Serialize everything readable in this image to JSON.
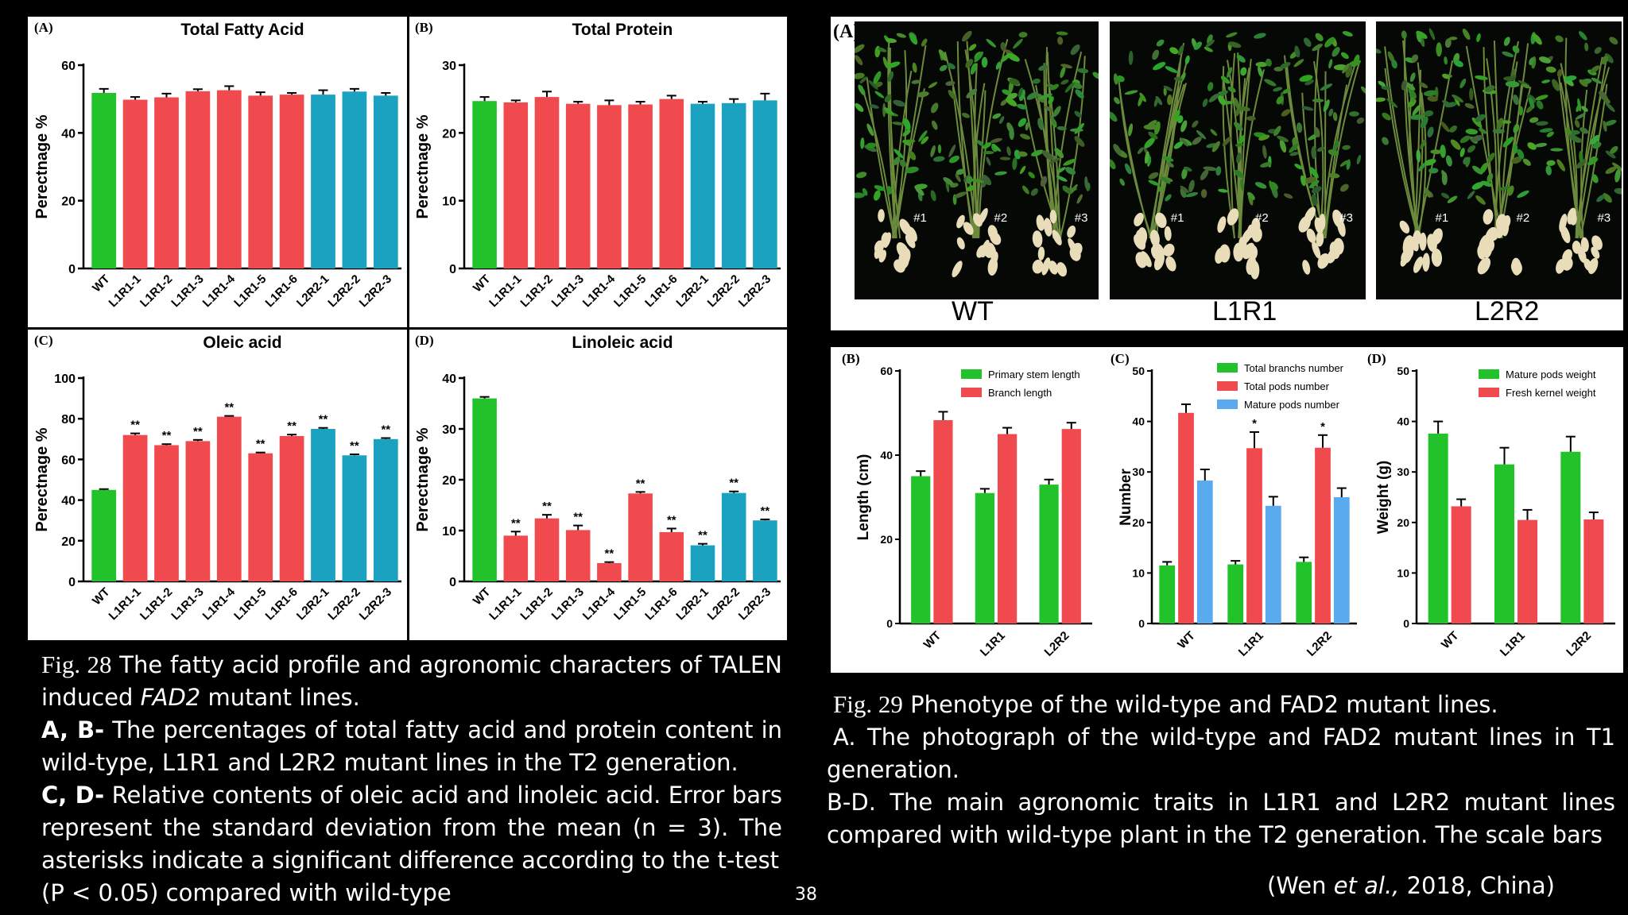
{
  "charts": [
    {
      "id": "A",
      "panel_label": "(A)",
      "title": "Total Fatty Acid",
      "ylabel": "Perectnage %",
      "ylim": [
        0,
        60
      ],
      "yticks": [
        0,
        20,
        40,
        60
      ],
      "categories": [
        "WT",
        "L1R1-1",
        "L1R1-2",
        "L1R1-3",
        "L1R1-4",
        "L1R1-5",
        "L1R1-6",
        "L2R2-1",
        "L2R2-2",
        "L2R2-3"
      ],
      "values": [
        51.8,
        49.8,
        50.5,
        52.3,
        52.6,
        51.0,
        51.3,
        51.3,
        52.2,
        51.0
      ],
      "errors": [
        1.2,
        0.8,
        1.1,
        0.6,
        1.2,
        1.0,
        0.5,
        1.3,
        0.8,
        0.8
      ],
      "stars": [
        "",
        "",
        "",
        "",
        "",
        "",
        "",
        "",
        "",
        ""
      ]
    },
    {
      "id": "B",
      "panel_label": "(B)",
      "title": "Total Protein",
      "ylabel": "Perectnage %",
      "ylim": [
        0,
        30
      ],
      "yticks": [
        0,
        10,
        20,
        30
      ],
      "categories": [
        "WT",
        "L1R1-1",
        "L1R1-2",
        "L1R1-3",
        "L1R1-4",
        "L1R1-5",
        "L1R1-6",
        "L2R2-1",
        "L2R2-2",
        "L2R2-3"
      ],
      "values": [
        24.7,
        24.5,
        25.3,
        24.3,
        24.1,
        24.2,
        25.0,
        24.3,
        24.4,
        24.8
      ],
      "errors": [
        0.6,
        0.3,
        0.8,
        0.3,
        0.7,
        0.4,
        0.5,
        0.3,
        0.6,
        1.0
      ],
      "stars": [
        "",
        "",
        "",
        "",
        "",
        "",
        "",
        "",
        "",
        ""
      ]
    },
    {
      "id": "C",
      "panel_label": "(C)",
      "title": "Oleic acid",
      "ylabel": "Perectnage %",
      "ylim": [
        0,
        100
      ],
      "yticks": [
        0,
        20,
        40,
        60,
        80,
        100
      ],
      "categories": [
        "WT",
        "L1R1-1",
        "L1R1-2",
        "L1R1-3",
        "L1R1-4",
        "L1R1-5",
        "L1R1-6",
        "L2R2-1",
        "L2R2-2",
        "L2R2-3"
      ],
      "values": [
        45,
        72,
        67,
        69,
        81,
        63,
        71.5,
        75,
        62,
        70
      ],
      "errors": [
        0.4,
        0.8,
        0.5,
        0.6,
        0.4,
        0.4,
        0.7,
        0.5,
        0.5,
        0.5
      ],
      "stars": [
        "",
        "**",
        "**",
        "**",
        "**",
        "**",
        "**",
        "**",
        "**",
        "**"
      ]
    },
    {
      "id": "D",
      "panel_label": "(D)",
      "title": "Linoleic acid",
      "ylabel": "Perectnage %",
      "ylim": [
        0,
        40
      ],
      "yticks": [
        0,
        10,
        20,
        30,
        40
      ],
      "categories": [
        "WT",
        "L1R1-1",
        "L1R1-2",
        "L1R1-3",
        "L1R1-4",
        "L1R1-5",
        "L1R1-6",
        "L2R2-1",
        "L2R2-2",
        "L2R2-3"
      ],
      "values": [
        36,
        9,
        12.4,
        10.1,
        3.6,
        17.3,
        9.7,
        7.1,
        17.4,
        12
      ],
      "errors": [
        0.3,
        0.8,
        0.7,
        0.9,
        0.2,
        0.3,
        0.7,
        0.3,
        0.3,
        0.2
      ],
      "stars": [
        "",
        "**",
        "**",
        "**",
        "**",
        "**",
        "**",
        "**",
        "**",
        "**"
      ]
    },
    {
      "id": "B2",
      "panel_label": "(B)",
      "title": "",
      "ylabel": "Length (cm)",
      "ylim": [
        0,
        60
      ],
      "yticks": [
        0,
        20,
        40,
        60
      ],
      "categories": [
        "WT",
        "L1R1",
        "L2R2"
      ],
      "series": [
        {
          "name": "Primary stem length",
          "color": "#22c32a",
          "values": [
            35,
            31,
            33
          ],
          "errors": [
            1.2,
            1.0,
            1.2
          ]
        },
        {
          "name": "Branch length",
          "color": "#f04a4e",
          "values": [
            48.3,
            45,
            46.2
          ],
          "errors": [
            2.0,
            1.5,
            1.5
          ]
        }
      ]
    },
    {
      "id": "C2",
      "panel_label": "(C)",
      "title": "",
      "ylabel": "Number",
      "ylim": [
        0,
        50
      ],
      "yticks": [
        0,
        10,
        20,
        30,
        40,
        50
      ],
      "categories": [
        "WT",
        "L1R1",
        "L2R2"
      ],
      "series": [
        {
          "name": "Total branchs number",
          "color": "#22c32a",
          "values": [
            11.5,
            11.7,
            12.2
          ],
          "errors": [
            0.7,
            0.7,
            0.9
          ]
        },
        {
          "name": "Total pods number",
          "color": "#f04a4e",
          "values": [
            41.7,
            34.7,
            34.8
          ],
          "errors": [
            1.7,
            3.2,
            2.5
          ]
        },
        {
          "name": "Mature pods number",
          "color": "#5aaaf0",
          "values": [
            28.3,
            23.3,
            25
          ],
          "errors": [
            2.2,
            1.8,
            1.8
          ]
        }
      ],
      "stars": [
        [
          "",
          "",
          ""
        ],
        [
          "",
          "*",
          ""
        ],
        [
          "",
          "*",
          ""
        ]
      ]
    },
    {
      "id": "D2",
      "panel_label": "(D)",
      "title": "",
      "ylabel": "Weight (g)",
      "ylim": [
        0,
        50
      ],
      "yticks": [
        0,
        10,
        20,
        30,
        40,
        50
      ],
      "categories": [
        "WT",
        "L1R1",
        "L2R2"
      ],
      "series": [
        {
          "name": "Mature pods weight",
          "color": "#22c32a",
          "values": [
            37.6,
            31.5,
            34
          ],
          "errors": [
            2.4,
            3.3,
            3.0
          ]
        },
        {
          "name": "Fresh kernel weight",
          "color": "#f04a4e",
          "values": [
            23.2,
            20.5,
            20.6
          ],
          "errors": [
            1.4,
            2.0,
            1.4
          ]
        }
      ]
    }
  ],
  "colors": {
    "wt": "#22c32a",
    "l1r1": "#f04a4e",
    "l2r2": "#1aa2c0"
  },
  "photo": {
    "panel_label": "(A)",
    "groups": [
      {
        "label": "WT"
      },
      {
        "label": "L1R1"
      },
      {
        "label": "L2R2"
      }
    ],
    "plant_tags": [
      "#1",
      "#2",
      "#3"
    ]
  },
  "caption28": {
    "fig": "Fig. 28",
    "line1": "The fatty acid profile and agronomic characters of TALEN",
    "line2_pre": "induced",
    "line2_gene": "FAD2",
    "line2_post": "mutant lines.",
    "ab_label": "A, B-",
    "ab_text1": "The percentages of total fatty acid and protein content in",
    "ab_text2": "wild-type, L1R1 and L2R2 mutant lines in the T2 generation.",
    "cd_label": "C, D-",
    "cd_text1": "Relative contents of oleic acid and linoleic acid. Error bars",
    "cd_text2": "represent the standard deviation from the mean (n = 3). The",
    "cd_text3": "asterisks indicate a significant difference according to the t-test",
    "cd_text4": "(P < 0.05) compared with wild-type"
  },
  "caption29": {
    "fig": "Fig. 29",
    "line1": "Phenotype of the wild-type and FAD2 mutant lines.",
    "a_text1": "A. The photograph of the wild-type and FAD2 mutant lines in T1",
    "a_text2": "generation.",
    "bd_text1": "B-D. The main agronomic traits in L1R1 and L2R2 mutant lines",
    "bd_text2": "compared with wild-type plant in the T2 generation. The scale bars"
  },
  "page_number": "38",
  "citation": {
    "pre": "(Wen",
    "etal": "et al.,",
    "post": "2018, China)"
  }
}
